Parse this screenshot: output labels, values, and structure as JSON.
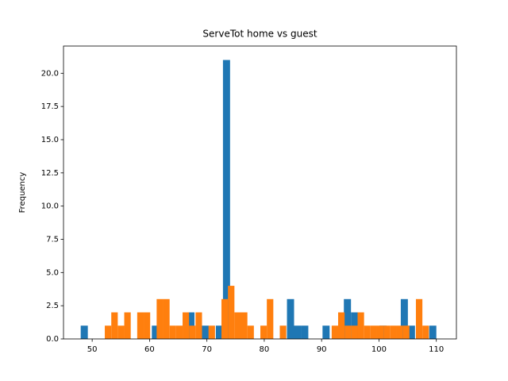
{
  "chart_data": {
    "type": "histogram",
    "title": "ServeTot home vs guest",
    "ylabel": "Frequency",
    "xlim": [
      45,
      113.5
    ],
    "ylim": [
      0,
      22.05
    ],
    "xticks": [
      50,
      60,
      70,
      80,
      90,
      100,
      110
    ],
    "yticks": [
      {
        "value": 0,
        "label": "0.0"
      },
      {
        "value": 2.5,
        "label": "2.5"
      },
      {
        "value": 5,
        "label": "5.0"
      },
      {
        "value": 7.5,
        "label": "7.5"
      },
      {
        "value": 10,
        "label": "10.0"
      },
      {
        "value": 12.5,
        "label": "12.5"
      },
      {
        "value": 15,
        "label": "15.0"
      },
      {
        "value": 17.5,
        "label": "17.5"
      },
      {
        "value": 20,
        "label": "20.0"
      }
    ],
    "series": [
      {
        "color": "#1f77b4",
        "bins": [
          48,
          49.24,
          50.48,
          51.72,
          52.96,
          54.2,
          55.44,
          56.68,
          57.92,
          59.16,
          60.4,
          61.64,
          62.88,
          64.12,
          65.36,
          66.6,
          67.84,
          69.08,
          70.32,
          71.56,
          72.8,
          74.04,
          75.28,
          76.52,
          77.76,
          79,
          80.24,
          81.48,
          82.72,
          83.96,
          85.2,
          86.44,
          87.68,
          88.92,
          90.16,
          91.4,
          92.64,
          93.88,
          95.12,
          96.36,
          97.6,
          98.84,
          100.08,
          101.32,
          102.56,
          103.8,
          105.04,
          106.28,
          107.52,
          108.76,
          110
        ],
        "values": [
          1,
          0,
          0,
          0,
          0,
          0,
          0,
          0,
          0,
          0,
          1,
          0,
          0,
          0,
          0,
          2,
          0,
          1,
          0,
          1,
          21,
          0,
          0,
          0,
          0,
          0,
          0,
          0,
          0,
          3,
          1,
          1,
          0,
          0,
          1,
          0,
          0,
          3,
          2,
          0,
          0,
          0,
          1,
          0,
          0,
          3,
          1,
          0,
          0,
          1
        ]
      },
      {
        "color": "#ff7f0e",
        "bins": [
          52.2,
          53.33,
          54.46,
          55.59,
          56.72,
          57.85,
          58.98,
          60.11,
          61.24,
          62.37,
          63.5,
          64.63,
          65.76,
          66.89,
          68.02,
          69.15,
          70.28,
          71.41,
          72.54,
          73.67,
          74.8,
          75.93,
          77.06,
          78.19,
          79.32,
          80.45,
          81.58,
          82.71,
          83.84,
          84.97,
          86.1,
          87.23,
          88.36,
          89.49,
          90.62,
          91.75,
          92.88,
          94.01,
          95.14,
          96.27,
          97.4,
          98.53,
          99.66,
          100.79,
          101.92,
          103.05,
          104.18,
          105.31,
          106.44,
          107.57,
          108.7
        ],
        "values": [
          1,
          2,
          1,
          2,
          0,
          2,
          2,
          0,
          3,
          3,
          1,
          1,
          2,
          1,
          2,
          0,
          1,
          0,
          3,
          4,
          2,
          2,
          1,
          0,
          1,
          3,
          0,
          1,
          0,
          0,
          0,
          0,
          0,
          0,
          0,
          1,
          2,
          1,
          1,
          2,
          1,
          1,
          1,
          1,
          1,
          1,
          1,
          0,
          3,
          1
        ]
      }
    ]
  }
}
